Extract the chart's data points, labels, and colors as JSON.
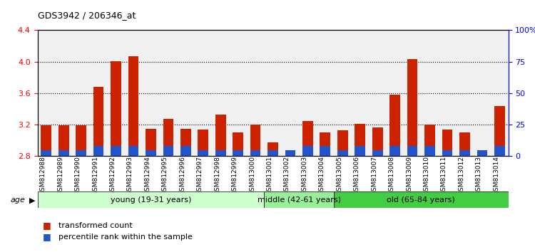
{
  "title": "GDS3942 / 206346_at",
  "samples": [
    "GSM812988",
    "GSM812989",
    "GSM812990",
    "GSM812991",
    "GSM812992",
    "GSM812993",
    "GSM812994",
    "GSM812995",
    "GSM812996",
    "GSM812997",
    "GSM812998",
    "GSM812999",
    "GSM813000",
    "GSM813001",
    "GSM813002",
    "GSM813003",
    "GSM813004",
    "GSM813005",
    "GSM813006",
    "GSM813007",
    "GSM813008",
    "GSM813009",
    "GSM813010",
    "GSM813011",
    "GSM813012",
    "GSM813013",
    "GSM813014"
  ],
  "transformed_count": [
    3.19,
    3.19,
    3.19,
    3.68,
    4.01,
    4.07,
    3.15,
    3.27,
    3.15,
    3.14,
    3.33,
    3.1,
    3.2,
    2.98,
    2.87,
    3.25,
    3.1,
    3.13,
    3.21,
    3.17,
    3.58,
    4.03,
    3.2,
    3.14,
    3.1,
    2.87,
    3.44
  ],
  "percentile_rank": [
    5,
    5,
    5,
    8,
    8,
    8,
    5,
    8,
    8,
    5,
    5,
    5,
    5,
    5,
    5,
    8,
    8,
    5,
    8,
    5,
    8,
    8,
    8,
    5,
    5,
    5,
    8
  ],
  "ylim_left": [
    2.8,
    4.4
  ],
  "ylim_right": [
    0,
    100
  ],
  "yticks_left": [
    2.8,
    3.2,
    3.6,
    4.0,
    4.4
  ],
  "yticks_right": [
    0,
    25,
    50,
    75,
    100
  ],
  "ytick_labels_right": [
    "0",
    "25",
    "50",
    "75",
    "100%"
  ],
  "bar_color": "#cc2200",
  "percentile_color": "#2255cc",
  "groups": [
    {
      "label": "young (19-31 years)",
      "start": 0,
      "end": 13,
      "color": "#ccffcc"
    },
    {
      "label": "middle (42-61 years)",
      "start": 13,
      "end": 17,
      "color": "#99ee99"
    },
    {
      "label": "old (65-84 years)",
      "start": 17,
      "end": 27,
      "color": "#44cc44"
    }
  ],
  "age_label": "age",
  "legend_items": [
    {
      "label": "transformed count",
      "color": "#cc2200"
    },
    {
      "label": "percentile rank within the sample",
      "color": "#2255cc"
    }
  ],
  "dotted_grid": [
    3.2,
    3.6,
    4.0
  ],
  "bar_width": 0.6,
  "background_color": "#f0f0f0"
}
